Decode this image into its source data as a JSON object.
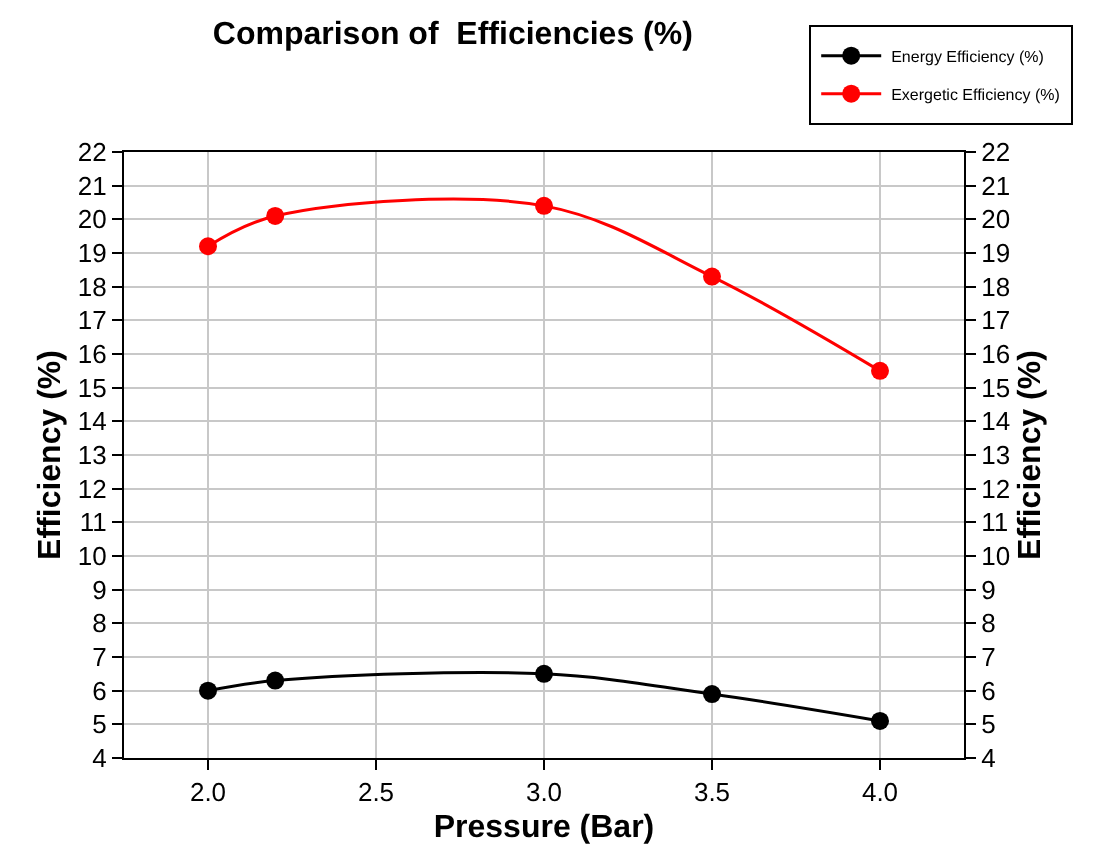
{
  "chart_data": {
    "type": "line",
    "title": "Comparison of  Efficiencies (%)",
    "xlabel": "Pressure (Bar)",
    "ylabel": "Efficiency (%)",
    "y2label": "Efficiency (%)",
    "x": [
      2.0,
      2.2,
      3.0,
      3.5,
      4.0
    ],
    "series": [
      {
        "name": "Energy Efficiency (%)",
        "color": "#000000",
        "values": [
          6.0,
          6.3,
          6.5,
          5.9,
          5.1
        ]
      },
      {
        "name": "Exergetic Efficiency (%)",
        "color": "#ff0000",
        "values": [
          19.2,
          20.1,
          20.4,
          18.3,
          15.5
        ]
      }
    ],
    "xlim": [
      1.75,
      4.25
    ],
    "xticks": [
      {
        "value": 2.0,
        "label": "2.0"
      },
      {
        "value": 2.5,
        "label": "2.5"
      },
      {
        "value": 3.0,
        "label": "3.0"
      },
      {
        "value": 3.5,
        "label": "3.5"
      },
      {
        "value": 4.0,
        "label": "4.0"
      }
    ],
    "ylim": [
      4,
      22
    ],
    "yticks": [
      4,
      5,
      6,
      7,
      8,
      9,
      10,
      11,
      12,
      13,
      14,
      15,
      16,
      17,
      18,
      19,
      20,
      21,
      22
    ],
    "y2lim": [
      4,
      22
    ],
    "y2ticks": [
      4,
      5,
      6,
      7,
      8,
      9,
      10,
      11,
      12,
      13,
      14,
      15,
      16,
      17,
      18,
      19,
      20,
      21,
      22
    ],
    "grid": true,
    "legend": "top right",
    "marker": "circle",
    "line_style": "solid"
  }
}
